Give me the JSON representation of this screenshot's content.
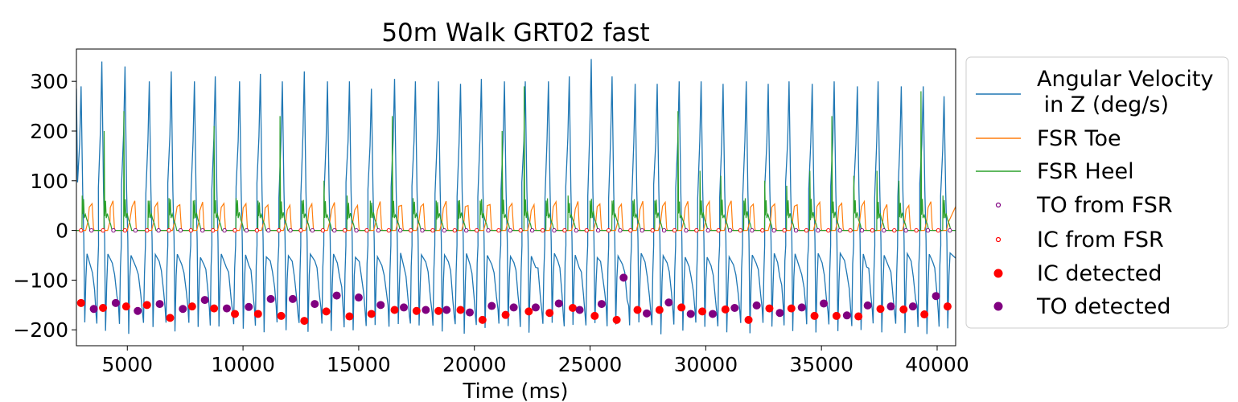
{
  "chart_data": {
    "type": "line",
    "title": "50m Walk GRT02 fast",
    "xlabel": "Time (ms)",
    "ylabel": "",
    "xlim": [
      2800,
      40800
    ],
    "ylim": [
      -232,
      365
    ],
    "x_ticks": [
      5000,
      10000,
      15000,
      20000,
      25000,
      30000,
      35000,
      40000
    ],
    "x_tick_labels": [
      "5000",
      "10000",
      "15000",
      "20000",
      "25000",
      "30000",
      "35000",
      "40000"
    ],
    "y_ticks": [
      -200,
      -100,
      0,
      100,
      200,
      300
    ],
    "y_tick_labels": [
      "−200",
      "−100",
      "0",
      "100",
      "200",
      "300"
    ],
    "grid": false,
    "legend_position": "outside-right",
    "legend": [
      {
        "label_lines": [
          "Angular Velocity",
          " in Z (deg/s)"
        ],
        "kind": "line",
        "color": "#1f77b4"
      },
      {
        "label_lines": [
          "FSR Toe"
        ],
        "kind": "line",
        "color": "#ff7f0e"
      },
      {
        "label_lines": [
          "FSR Heel"
        ],
        "kind": "line",
        "color": "#2ca02c"
      },
      {
        "label_lines": [
          "TO from FSR"
        ],
        "kind": "hollow-marker",
        "color": "#800080"
      },
      {
        "label_lines": [
          "IC from FSR"
        ],
        "kind": "hollow-marker",
        "color": "#ff0000"
      },
      {
        "label_lines": [
          "IC detected"
        ],
        "kind": "filled-marker",
        "color": "#ff0000"
      },
      {
        "label_lines": [
          "TO detected"
        ],
        "kind": "filled-marker",
        "color": "#800080"
      }
    ],
    "signal_description": {
      "angular_velocity_peaks": [
        [
          3000,
          290
        ],
        [
          3900,
          340
        ],
        [
          4900,
          330
        ],
        [
          5950,
          300
        ],
        [
          6900,
          320
        ],
        [
          7900,
          300
        ],
        [
          8800,
          310
        ],
        [
          9850,
          300
        ],
        [
          10750,
          315
        ],
        [
          11700,
          300
        ],
        [
          12650,
          320
        ],
        [
          13650,
          300
        ],
        [
          14600,
          300
        ],
        [
          15550,
          285
        ],
        [
          16550,
          305
        ],
        [
          17450,
          300
        ],
        [
          18450,
          300
        ],
        [
          19400,
          295
        ],
        [
          20300,
          305
        ],
        [
          21300,
          300
        ],
        [
          22200,
          300
        ],
        [
          23200,
          300
        ],
        [
          24100,
          310
        ],
        [
          25050,
          345
        ],
        [
          25950,
          310
        ],
        [
          26950,
          295
        ],
        [
          27900,
          295
        ],
        [
          28850,
          300
        ],
        [
          29800,
          300
        ],
        [
          30750,
          295
        ],
        [
          31750,
          300
        ],
        [
          32700,
          295
        ],
        [
          33600,
          300
        ],
        [
          34600,
          295
        ],
        [
          35550,
          300
        ],
        [
          36550,
          290
        ],
        [
          37450,
          300
        ],
        [
          38450,
          290
        ],
        [
          39400,
          290
        ],
        [
          40300,
          270
        ]
      ],
      "fsr_heel_peaks": [
        [
          3050,
          70
        ],
        [
          4000,
          200
        ],
        [
          4850,
          240
        ],
        [
          5900,
          60
        ],
        [
          6800,
          65
        ],
        [
          7850,
          60
        ],
        [
          8750,
          210
        ],
        [
          9700,
          65
        ],
        [
          10650,
          60
        ],
        [
          11600,
          230
        ],
        [
          12550,
          60
        ],
        [
          13500,
          100
        ],
        [
          14500,
          70
        ],
        [
          15500,
          60
        ],
        [
          16450,
          230
        ],
        [
          17350,
          65
        ],
        [
          18350,
          60
        ],
        [
          19300,
          60
        ],
        [
          20250,
          60
        ],
        [
          21200,
          200
        ],
        [
          22150,
          290
        ],
        [
          23100,
          60
        ],
        [
          24050,
          70
        ],
        [
          25000,
          60
        ],
        [
          25950,
          60
        ],
        [
          26850,
          60
        ],
        [
          27800,
          60
        ],
        [
          28800,
          240
        ],
        [
          29750,
          120
        ],
        [
          30650,
          110
        ],
        [
          31650,
          60
        ],
        [
          32550,
          100
        ],
        [
          33500,
          90
        ],
        [
          34500,
          120
        ],
        [
          35450,
          230
        ],
        [
          36400,
          110
        ],
        [
          37400,
          120
        ],
        [
          38350,
          100
        ],
        [
          39300,
          280
        ],
        [
          40250,
          70
        ]
      ],
      "fsr_toe_peak": 55
    },
    "series": [
      {
        "name": "TO from FSR",
        "marker": "hollow",
        "color": "#800080",
        "y": 0,
        "x": [
          3450,
          4400,
          5350,
          6350,
          7300,
          8250,
          9200,
          10150,
          11100,
          12050,
          13000,
          13950,
          14900,
          15850,
          16800,
          17750,
          18700,
          19650,
          20600,
          21550,
          22500,
          23450,
          24400,
          25350,
          26300,
          27250,
          28200,
          29150,
          30100,
          31050,
          32000,
          32950,
          33900,
          34850,
          35800,
          36750,
          37700,
          38650,
          39600,
          40550
        ]
      },
      {
        "name": "IC from FSR",
        "marker": "hollow",
        "color": "#ff0000",
        "y": 0,
        "x": [
          3000,
          3950,
          4900,
          5850,
          6800,
          7750,
          8700,
          9650,
          10600,
          11550,
          12500,
          13450,
          14400,
          15350,
          16300,
          17250,
          18200,
          19150,
          20100,
          21050,
          22000,
          22950,
          23900,
          24850,
          25800,
          26750,
          27700,
          28650,
          29600,
          30550,
          31500,
          32450,
          33400,
          34350,
          35300,
          36250,
          37200,
          38150,
          39100,
          40050
        ]
      },
      {
        "name": "IC detected",
        "marker": "filled",
        "color": "#ff0000",
        "points": [
          [
            3000,
            -146
          ],
          [
            3950,
            -156
          ],
          [
            4950,
            -153
          ],
          [
            5850,
            -150
          ],
          [
            6850,
            -176
          ],
          [
            7800,
            -153
          ],
          [
            8750,
            -157
          ],
          [
            9650,
            -168
          ],
          [
            10650,
            -168
          ],
          [
            11650,
            -172
          ],
          [
            12650,
            -182
          ],
          [
            13600,
            -163
          ],
          [
            14600,
            -173
          ],
          [
            15550,
            -168
          ],
          [
            16550,
            -160
          ],
          [
            17500,
            -162
          ],
          [
            18450,
            -162
          ],
          [
            19400,
            -160
          ],
          [
            20350,
            -180
          ],
          [
            21350,
            -170
          ],
          [
            22350,
            -163
          ],
          [
            23250,
            -166
          ],
          [
            24250,
            -156
          ],
          [
            25200,
            -172
          ],
          [
            26150,
            -180
          ],
          [
            27050,
            -160
          ],
          [
            28000,
            -160
          ],
          [
            28950,
            -155
          ],
          [
            29850,
            -163
          ],
          [
            30850,
            -159
          ],
          [
            31850,
            -180
          ],
          [
            32750,
            -157
          ],
          [
            33700,
            -157
          ],
          [
            34700,
            -172
          ],
          [
            35650,
            -172
          ],
          [
            36600,
            -173
          ],
          [
            37550,
            -158
          ],
          [
            38550,
            -159
          ],
          [
            39450,
            -169
          ],
          [
            40450,
            -153
          ]
        ]
      },
      {
        "name": "TO detected",
        "marker": "filled",
        "color": "#800080",
        "points": [
          [
            3550,
            -158
          ],
          [
            4500,
            -146
          ],
          [
            5450,
            -162
          ],
          [
            6400,
            -148
          ],
          [
            7400,
            -158
          ],
          [
            8350,
            -140
          ],
          [
            9300,
            -157
          ],
          [
            10250,
            -154
          ],
          [
            11200,
            -138
          ],
          [
            12150,
            -138
          ],
          [
            13100,
            -148
          ],
          [
            14050,
            -131
          ],
          [
            15000,
            -135
          ],
          [
            15950,
            -150
          ],
          [
            16950,
            -155
          ],
          [
            17900,
            -160
          ],
          [
            18800,
            -160
          ],
          [
            19800,
            -165
          ],
          [
            20750,
            -152
          ],
          [
            21700,
            -155
          ],
          [
            22650,
            -155
          ],
          [
            23650,
            -147
          ],
          [
            24550,
            -160
          ],
          [
            25500,
            -148
          ],
          [
            26450,
            -95
          ],
          [
            27450,
            -167
          ],
          [
            28400,
            -145
          ],
          [
            29350,
            -168
          ],
          [
            30300,
            -168
          ],
          [
            31250,
            -156
          ],
          [
            32200,
            -151
          ],
          [
            33200,
            -166
          ],
          [
            34150,
            -155
          ],
          [
            35100,
            -147
          ],
          [
            36100,
            -171
          ],
          [
            37000,
            -151
          ],
          [
            38000,
            -153
          ],
          [
            38950,
            -153
          ],
          [
            39950,
            -132
          ]
        ]
      }
    ]
  }
}
